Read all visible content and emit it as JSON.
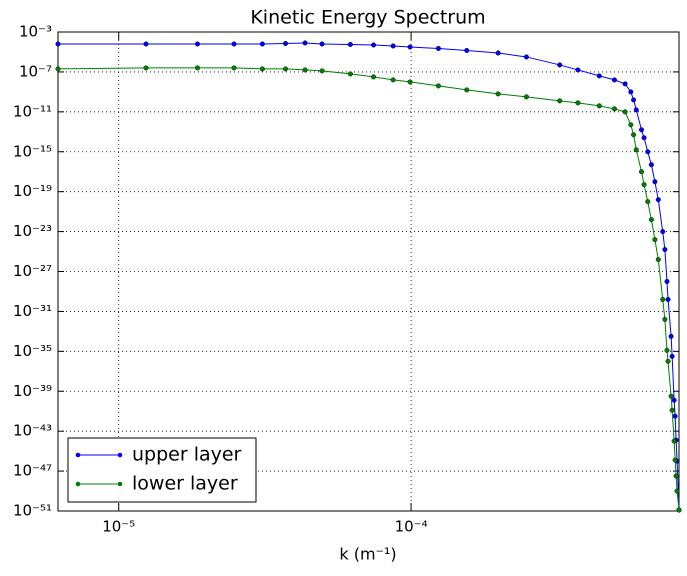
{
  "chart_data": {
    "type": "line",
    "title": "Kinetic Energy Spectrum",
    "xlabel": "k (m⁻¹)",
    "xscale": "log",
    "yscale": "log",
    "grid": true,
    "legend": "lower left",
    "xlim": [
      6.2e-06,
      0.0008246
    ],
    "ylim": [
      1e-51,
      0.001
    ],
    "xticks": [
      {
        "value": 1e-05,
        "label": "10⁻⁵"
      },
      {
        "value": 0.0001,
        "label": "10⁻⁴"
      }
    ],
    "yticks": [
      {
        "value": 0.001,
        "label": "10⁻³"
      },
      {
        "value": 1e-07,
        "label": "10⁻⁷"
      },
      {
        "value": 1e-11,
        "label": "10⁻¹¹"
      },
      {
        "value": 1e-15,
        "label": "10⁻¹⁵"
      },
      {
        "value": 1e-19,
        "label": "10⁻¹⁹"
      },
      {
        "value": 1e-23,
        "label": "10⁻²³"
      },
      {
        "value": 1e-27,
        "label": "10⁻²⁷"
      },
      {
        "value": 1e-31,
        "label": "10⁻³¹"
      },
      {
        "value": 1e-35,
        "label": "10⁻³⁵"
      },
      {
        "value": 1e-39,
        "label": "10⁻³⁹"
      },
      {
        "value": 1e-43,
        "label": "10⁻⁴³"
      },
      {
        "value": 1e-47,
        "label": "10⁻⁴⁷"
      },
      {
        "value": 1e-51,
        "label": "10⁻⁵¹"
      }
    ],
    "x": [
      6.2e-06,
      1.24e-05,
      1.86e-05,
      2.48e-05,
      3.1e-05,
      3.72e-05,
      4.34e-05,
      4.96e-05,
      6.2e-05,
      7.44e-05,
      8.68e-05,
      9.92e-05,
      0.000124,
      0.000155,
      0.0001984,
      0.000248,
      0.0003224,
      0.000372,
      0.0004402,
      0.000496,
      0.0005394,
      0.0005642,
      0.0005766,
      0.000589,
      0.0006138,
      0.0006262,
      0.0006448,
      0.0006634,
      0.000682,
      0.0007006,
      0.0007254,
      0.0007378,
      0.0007502,
      0.0007564,
      0.000775,
      0.0007812,
      0.0007936,
      0.0007998,
      0.000806,
      0.0008122,
      0.0008246
    ],
    "series": [
      {
        "name": "upper layer",
        "color": "#0000ff",
        "values": [
          6.31e-05,
          6.31e-05,
          6.31e-05,
          6.31e-05,
          6.31e-05,
          7.08e-05,
          7.94e-05,
          6.31e-05,
          5.62e-05,
          5.01e-05,
          3.98e-05,
          3.16e-05,
          2.24e-05,
          1.41e-05,
          7.94e-06,
          3.16e-06,
          5.01e-07,
          1.58e-07,
          3.98e-08,
          1.58e-08,
          6.31e-09,
          1e-09,
          1.58e-10,
          1.58e-11,
          1.58e-13,
          2.51e-14,
          1e-15,
          5.01e-17,
          1e-18,
          1.58e-20,
          1e-23,
          1.58e-25,
          1e-28,
          1.58e-30,
          3.16e-34,
          3.16e-36,
          1.26e-40,
          3.16e-42,
          1.26e-44,
          1e-46,
          1.26e-51
        ]
      },
      {
        "name": "lower layer",
        "color": "#008000",
        "values": [
          2e-07,
          2.51e-07,
          2.51e-07,
          2.51e-07,
          2e-07,
          2e-07,
          1.58e-07,
          1.26e-07,
          6.31e-08,
          3.16e-08,
          1.58e-08,
          1e-08,
          3.98e-09,
          1.58e-09,
          6.31e-10,
          3.16e-10,
          1.26e-10,
          7.94e-11,
          3.98e-11,
          2e-11,
          1e-11,
          5.01e-13,
          5.01e-14,
          1.58e-15,
          1e-17,
          5.01e-19,
          1e-20,
          1.58e-22,
          1.58e-24,
          1.58e-26,
          1.58e-30,
          1.58e-32,
          1.26e-35,
          1e-36,
          3.16e-40,
          1.26e-41,
          1e-44,
          1.26e-46,
          3.16e-48,
          1e-49,
          1.26e-51
        ]
      }
    ]
  }
}
